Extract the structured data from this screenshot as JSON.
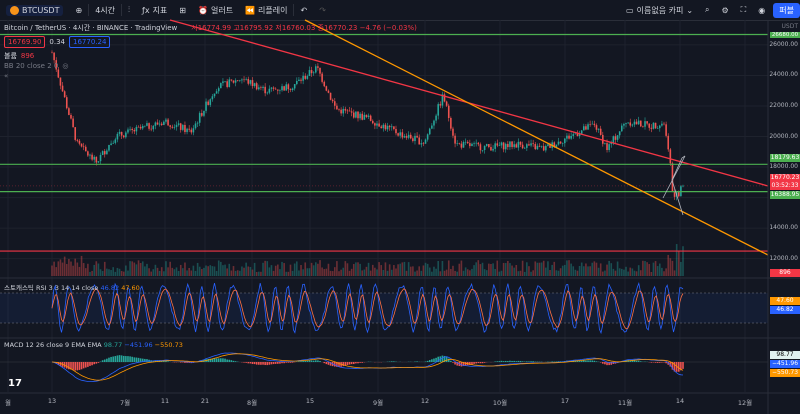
{
  "toolbar": {
    "symbol": "BTCUSDT",
    "interval": "4시간",
    "indicators_label": "지표",
    "alert_label": "얼러트",
    "replay_label": "리플레이",
    "layout_label": "이름없음 카피",
    "publish_label": "퍼블"
  },
  "legend": {
    "title": "Bitcoin / TetherUS · 4시간 · BINANCE · TradingView",
    "open_label": "시",
    "open": "16774.99",
    "high_label": "고",
    "high": "16795.92",
    "low_label": "저",
    "low": "16760.03",
    "close_label": "종",
    "close": "16770.23",
    "change": "−4.76 (−0.03%)",
    "bid": "16769.90",
    "spread": "0.34",
    "ask": "16770.24",
    "volume_label": "볼륨",
    "volume": "896",
    "bb_label": "BB 20 close 2 0"
  },
  "panes": {
    "stoch_label": "스토캐스틱 RSI 3 3 14 14 close",
    "stoch_k": "46.82",
    "stoch_d": "47.60",
    "macd_label": "MACD 12 26 close 9 EMA EMA",
    "macd_hist": "98.77",
    "macd_line": "−451.96",
    "macd_signal": "−550.73"
  },
  "price_axis": {
    "ticks": [
      "26000.00",
      "24000.00",
      "22000.00",
      "20000.00",
      "18000.00",
      "16000.00",
      "14000.00",
      "12000.00"
    ],
    "currency": "USDT",
    "top_level": "26680.00",
    "badge_resistance": "18179.63",
    "badge_last": "16770.23",
    "badge_countdown": "03:52:33",
    "badge_support": "16388.95",
    "badge_volume": "896",
    "stoch_d_badge": "47.60",
    "stoch_k_badge": "46.82",
    "macd_hist_badge": "98.77",
    "macd_line_badge": "−451.96",
    "macd_signal_badge": "−550.73"
  },
  "time_axis": [
    "월",
    "13",
    "7월",
    "11",
    "21",
    "8월",
    "15",
    "9월",
    "12",
    "10월",
    "17",
    "11월",
    "14",
    "12월"
  ],
  "colors": {
    "background": "#131722",
    "up": "#26a69a",
    "down": "#ef5350",
    "green_line": "#4caf50",
    "red_line": "#f23645",
    "orange_line": "#ff9800",
    "accent": "#2962ff"
  },
  "chart_data": {
    "type": "candlestick",
    "title": "Bitcoin / TetherUS · 4시간 · BINANCE · TradingView",
    "price_anchors": [
      [
        0,
        25500
      ],
      [
        0.04,
        19500
      ],
      [
        0.07,
        18300
      ],
      [
        0.1,
        20000
      ],
      [
        0.14,
        20500
      ],
      [
        0.18,
        21000
      ],
      [
        0.22,
        20300
      ],
      [
        0.26,
        23200
      ],
      [
        0.3,
        23800
      ],
      [
        0.34,
        23000
      ],
      [
        0.38,
        23300
      ],
      [
        0.42,
        24500
      ],
      [
        0.45,
        21800
      ],
      [
        0.5,
        21200
      ],
      [
        0.55,
        20200
      ],
      [
        0.59,
        19600
      ],
      [
        0.62,
        22700
      ],
      [
        0.64,
        19500
      ],
      [
        0.69,
        19300
      ],
      [
        0.74,
        19500
      ],
      [
        0.78,
        19200
      ],
      [
        0.82,
        20000
      ],
      [
        0.86,
        20800
      ],
      [
        0.88,
        19200
      ],
      [
        0.91,
        21000
      ],
      [
        0.95,
        20700
      ],
      [
        0.97,
        20900
      ],
      [
        0.98,
        18000
      ],
      [
        0.985,
        15800
      ],
      [
        1.0,
        16770
      ]
    ],
    "horizontal_levels": {
      "green": [
        26680,
        18180,
        16390
      ],
      "red": [
        12500
      ]
    },
    "ylim": [
      10800,
      27500
    ]
  }
}
